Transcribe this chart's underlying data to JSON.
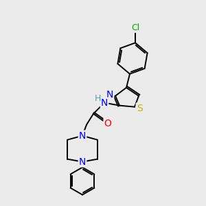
{
  "background_color": "#ebebeb",
  "bond_color": "#000000",
  "atom_colors": {
    "N": "#0000ff",
    "S": "#b8b800",
    "O": "#ff0000",
    "Cl": "#00aa00",
    "C": "#000000",
    "H": "#5a9ea0"
  },
  "figsize": [
    3.0,
    3.0
  ],
  "dpi": 100
}
